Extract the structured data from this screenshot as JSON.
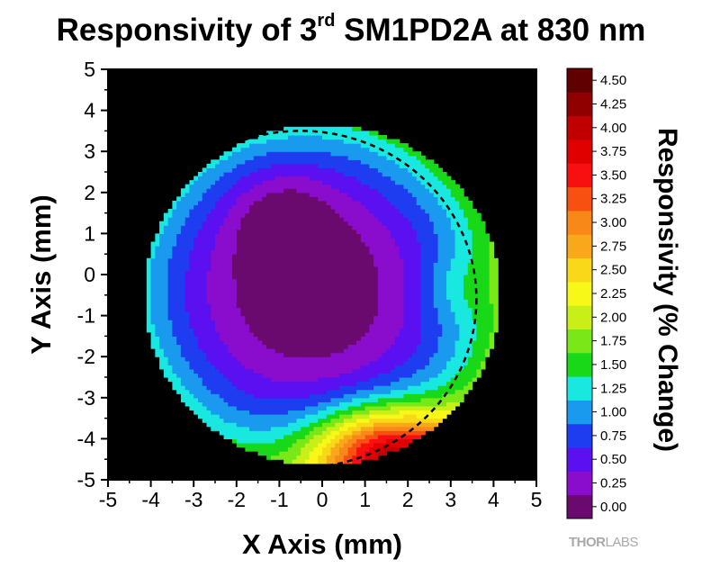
{
  "chart_data": {
    "type": "heatmap",
    "title_main": "Responsivity of 3",
    "title_sup": "rd",
    "title_rest": " SM1PD2A at 830 nm",
    "xlabel": "X Axis (mm)",
    "ylabel": "Y Axis (mm)",
    "xlim": [
      -5,
      5
    ],
    "ylim": [
      -5,
      5
    ],
    "x_ticks": [
      "-5",
      "-4",
      "-3",
      "-2",
      "-1",
      "0",
      "1",
      "2",
      "3",
      "4",
      "5"
    ],
    "y_ticks": [
      "-5",
      "-4",
      "-3",
      "-2",
      "-1",
      "0",
      "1",
      "2",
      "3",
      "4",
      "5"
    ],
    "background_color": "#000000",
    "colorbar": {
      "label": "Responsivity (% Change)",
      "ticks": [
        "0.00",
        "0.25",
        "0.50",
        "0.75",
        "1.00",
        "1.25",
        "1.50",
        "1.75",
        "2.00",
        "2.25",
        "2.50",
        "2.75",
        "3.00",
        "3.25",
        "3.50",
        "3.75",
        "4.00",
        "4.25",
        "4.50"
      ],
      "colors": [
        "#6a0a6e",
        "#8a0ccc",
        "#5a10f0",
        "#1e3cf0",
        "#1a9aee",
        "#18e8e0",
        "#18d818",
        "#7ae818",
        "#c8f018",
        "#f8f818",
        "#f8d818",
        "#f8a818",
        "#f88818",
        "#f85010",
        "#f81010",
        "#e00000",
        "#c00000",
        "#900000",
        "#600000"
      ]
    },
    "map_description": {
      "center": [
        0.0,
        -0.5
      ],
      "min_value_location": [
        -0.3,
        -0.4
      ],
      "min_value": 0.0,
      "max_value_location": [
        1.5,
        -4.3
      ],
      "max_value": 4.0
    },
    "dashed_circle": {
      "center": [
        -0.5,
        -0.6
      ],
      "radius": 4.1
    }
  },
  "logo": {
    "bold": "THOR",
    "light": "LABS"
  }
}
